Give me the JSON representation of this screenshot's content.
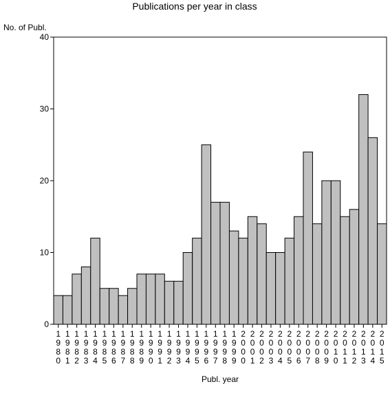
{
  "chart_data": {
    "type": "bar",
    "title": "Publications per year in class",
    "ylabel": "No. of Publ.",
    "xlabel": "Publ. year",
    "ylim": [
      0,
      40
    ],
    "yticks": [
      0,
      10,
      20,
      30,
      40
    ],
    "grid": false,
    "bar_color": "#c0c0c0",
    "edge_color": "#000000",
    "categories": [
      "1980",
      "1981",
      "1982",
      "1983",
      "1984",
      "1985",
      "1986",
      "1987",
      "1988",
      "1989",
      "1990",
      "1991",
      "1992",
      "1993",
      "1994",
      "1995",
      "1996",
      "1997",
      "1998",
      "1999",
      "2000",
      "2001",
      "2002",
      "2003",
      "2004",
      "2005",
      "2006",
      "2007",
      "2008",
      "2009",
      "2010",
      "2011",
      "2012",
      "2013",
      "2014",
      "2015"
    ],
    "values": [
      4,
      4,
      7,
      8,
      12,
      5,
      5,
      4,
      5,
      7,
      7,
      7,
      6,
      6,
      10,
      12,
      25,
      17,
      17,
      13,
      12,
      15,
      14,
      10,
      10,
      12,
      15,
      24,
      14,
      20,
      20,
      15,
      16,
      32,
      26,
      14
    ]
  }
}
